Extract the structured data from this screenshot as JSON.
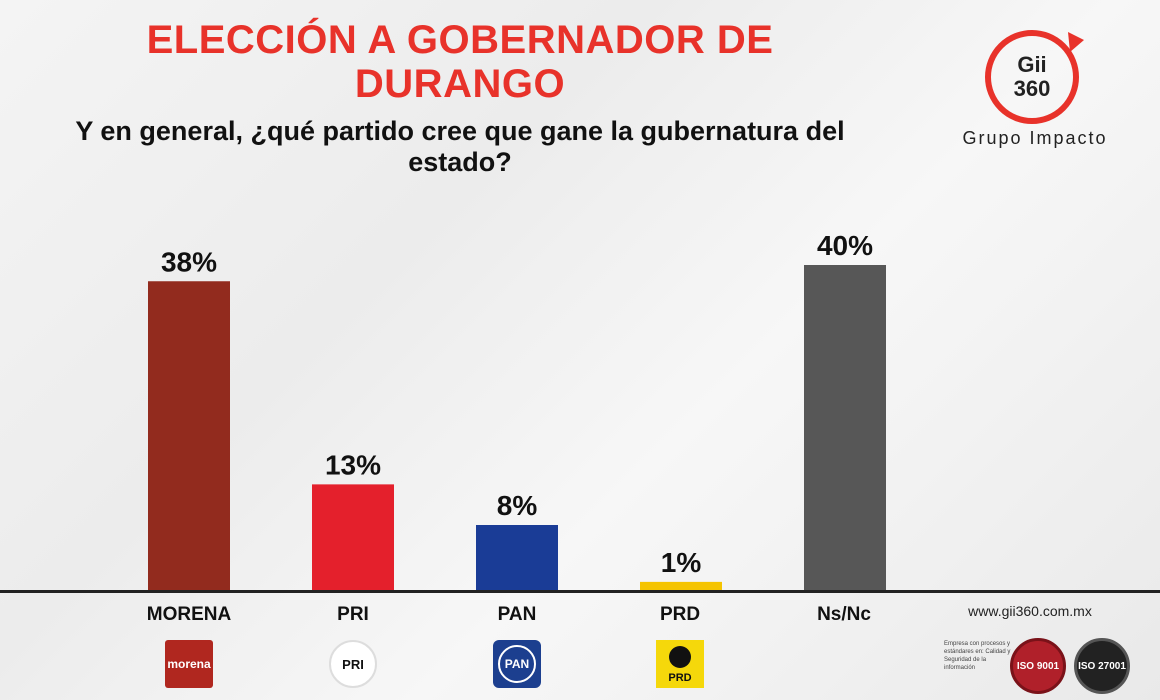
{
  "header": {
    "title": "ELECCIÓN A GOBERNADOR DE DURANGO",
    "subtitle": "Y en general, ¿qué partido cree que gane la gubernatura del estado?"
  },
  "brand": {
    "logo_text_top": "Gii",
    "logo_text_bottom": "360",
    "name": "Grupo Impacto",
    "website": "www.gii360.com.mx",
    "cert_text": "Empresa con procesos y estándares en: Calidad y Seguridad de la información",
    "cert_badges": [
      "ISO 9001",
      "ISO 27001"
    ]
  },
  "party_logos": {
    "morena": "morena",
    "pri": "PRI",
    "pan": "PAN",
    "prd": "PRD"
  },
  "chart_data": {
    "type": "bar",
    "title": "ELECCIÓN A GOBERNADOR DE DURANGO",
    "subtitle": "Y en general, ¿qué partido cree que gane la gubernatura del estado?",
    "categories": [
      "MORENA",
      "PRI",
      "PAN",
      "PRD",
      "Ns/Nc"
    ],
    "values": [
      38,
      13,
      8,
      1,
      40
    ],
    "value_labels": [
      "38%",
      "13%",
      "8%",
      "1%",
      "40%"
    ],
    "colors": [
      "#922b1e",
      "#e4202c",
      "#1a3c96",
      "#f5c400",
      "#575757"
    ],
    "unit": "%",
    "ylim": [
      0,
      40
    ],
    "grid": false,
    "legend": "none"
  }
}
